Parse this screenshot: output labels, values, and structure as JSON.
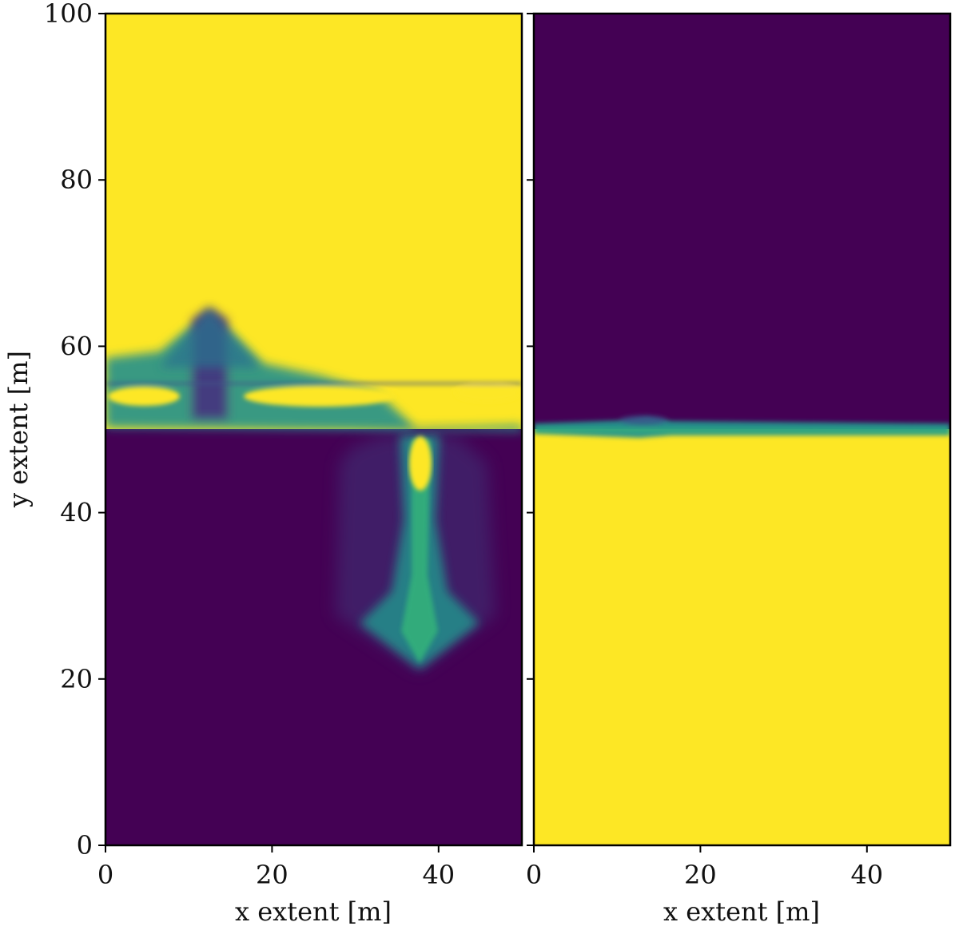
{
  "chart_data": [
    {
      "type": "heatmap",
      "title": "",
      "xlabel": "x extent [m]",
      "ylabel": "y extent [m]",
      "xlim": [
        0,
        50
      ],
      "ylim": [
        0,
        100
      ],
      "x_ticks": [
        0,
        20,
        40
      ],
      "y_ticks": [
        0,
        20,
        40,
        60,
        80,
        100
      ],
      "colormap": "viridis",
      "colors": {
        "low": "#440154",
        "mid": "#21918c",
        "high": "#fde725"
      },
      "grid": false,
      "fields": {
        "upper_region_value": 1,
        "lower_region_value": 0,
        "interface_y": 50,
        "upward_spike": {
          "x": 12.5,
          "y_top": 65
        },
        "downward_plume": {
          "x": 38,
          "y_bottom": 21
        }
      }
    },
    {
      "type": "heatmap",
      "title": "",
      "xlabel": "x extent [m]",
      "ylabel": "",
      "xlim": [
        0,
        50
      ],
      "ylim": [
        0,
        100
      ],
      "x_ticks": [
        0,
        20,
        40
      ],
      "y_ticks": [
        0,
        20,
        40,
        60,
        80,
        100
      ],
      "y_tick_labels_shown": false,
      "colormap": "viridis",
      "colors": {
        "low": "#440154",
        "mid": "#21918c",
        "high": "#fde725"
      },
      "grid": false,
      "fields": {
        "upper_region_value": 0,
        "lower_region_value": 1,
        "interface_y": 50
      }
    }
  ]
}
